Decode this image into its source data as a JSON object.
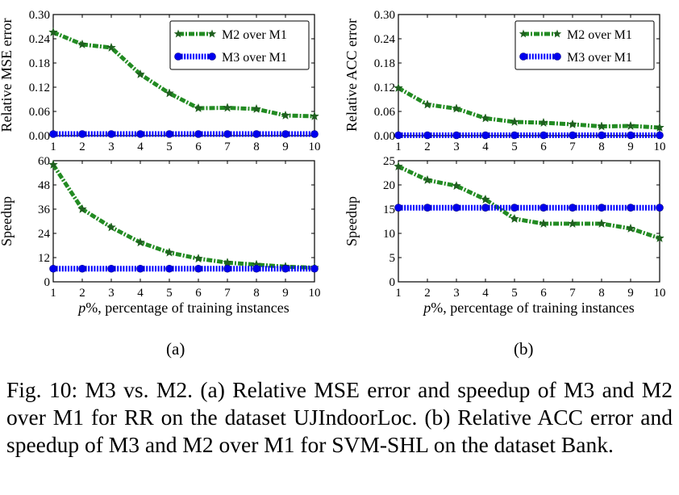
{
  "chart_data": [
    {
      "id": "a-top",
      "type": "line",
      "ylabel": "Relative MSE error",
      "xlabel": "",
      "x": [
        1,
        2,
        3,
        4,
        5,
        6,
        7,
        8,
        9,
        10
      ],
      "xticks": [
        "1",
        "2",
        "3",
        "4",
        "5",
        "6",
        "7",
        "8",
        "9",
        "10"
      ],
      "ylim": [
        0,
        0.3
      ],
      "yticks": [
        "0.00",
        "0.06",
        "0.12",
        "0.18",
        "0.24",
        "0.30"
      ],
      "legend": "top-right",
      "series": [
        {
          "name": "M2 over M1",
          "color": "#228B22",
          "marker": "star",
          "values": [
            0.256,
            0.226,
            0.218,
            0.152,
            0.105,
            0.068,
            0.069,
            0.066,
            0.05,
            0.048
          ]
        },
        {
          "name": "M3 over M1",
          "color": "#0000ff",
          "marker": "circle",
          "values": [
            0.004,
            0.004,
            0.004,
            0.004,
            0.004,
            0.004,
            0.004,
            0.004,
            0.004,
            0.004
          ]
        }
      ]
    },
    {
      "id": "a-bottom",
      "type": "line",
      "ylabel": "Speedup",
      "xlabel": "p%, percentage of training instances",
      "x": [
        1,
        2,
        3,
        4,
        5,
        6,
        7,
        8,
        9,
        10
      ],
      "xticks": [
        "1",
        "2",
        "3",
        "4",
        "5",
        "6",
        "7",
        "8",
        "9",
        "10"
      ],
      "ylim": [
        0,
        60
      ],
      "yticks": [
        "0",
        "12",
        "24",
        "36",
        "48",
        "60"
      ],
      "series": [
        {
          "name": "M2 over M1",
          "color": "#228B22",
          "marker": "star",
          "values": [
            58,
            36,
            27,
            19.5,
            14.5,
            11.5,
            9.5,
            8.5,
            7.5,
            7
          ]
        },
        {
          "name": "M3 over M1",
          "color": "#0000ff",
          "marker": "circle",
          "values": [
            6.5,
            6.5,
            6.5,
            6.5,
            6.5,
            6.5,
            6.5,
            6.5,
            6.5,
            6.5
          ]
        }
      ]
    },
    {
      "id": "b-top",
      "type": "line",
      "ylabel": "Relative ACC error",
      "xlabel": "",
      "x": [
        1,
        2,
        3,
        4,
        5,
        6,
        7,
        8,
        9,
        10
      ],
      "xticks": [
        "1",
        "2",
        "3",
        "4",
        "5",
        "6",
        "7",
        "8",
        "9",
        "10"
      ],
      "ylim": [
        0,
        0.3
      ],
      "yticks": [
        "0.00",
        "0.06",
        "0.12",
        "0.18",
        "0.24",
        "0.30"
      ],
      "legend": "top-right",
      "series": [
        {
          "name": "M2 over M1",
          "color": "#228B22",
          "marker": "star",
          "values": [
            0.118,
            0.077,
            0.067,
            0.043,
            0.034,
            0.032,
            0.028,
            0.023,
            0.024,
            0.02
          ]
        },
        {
          "name": "M3 over M1",
          "color": "#0000ff",
          "marker": "circle",
          "values": [
            0.001,
            0.001,
            0.001,
            0.001,
            0.001,
            0.001,
            0.001,
            0.001,
            0.001,
            0.001
          ]
        }
      ]
    },
    {
      "id": "b-bottom",
      "type": "line",
      "ylabel": "Speedup",
      "xlabel": "p%, percentage of training instances",
      "x": [
        1,
        2,
        3,
        4,
        5,
        6,
        7,
        8,
        9,
        10
      ],
      "xticks": [
        "1",
        "2",
        "3",
        "4",
        "5",
        "6",
        "7",
        "8",
        "9",
        "10"
      ],
      "ylim": [
        0,
        25
      ],
      "yticks": [
        "0",
        "5",
        "10",
        "15",
        "20",
        "25"
      ],
      "series": [
        {
          "name": "M2 over M1",
          "color": "#228B22",
          "marker": "star",
          "values": [
            23.8,
            21,
            19.8,
            17,
            13,
            12,
            12,
            12,
            11,
            9
          ]
        },
        {
          "name": "M3 over M1",
          "color": "#0000ff",
          "marker": "circle",
          "values": [
            15.3,
            15.3,
            15.3,
            15.3,
            15.3,
            15.3,
            15.3,
            15.3,
            15.3,
            15.3
          ]
        }
      ]
    }
  ],
  "subfigure_labels": [
    "(a)",
    "(b)"
  ],
  "caption": "Fig. 10: M3 vs. M2. (a) Relative MSE error and speedup of M3 and M2 over M1 for RR on the dataset UJIndoorLoc. (b) Relative ACC error and speedup of M3 and M2 over M1 for SVM-SHL on the dataset Bank."
}
